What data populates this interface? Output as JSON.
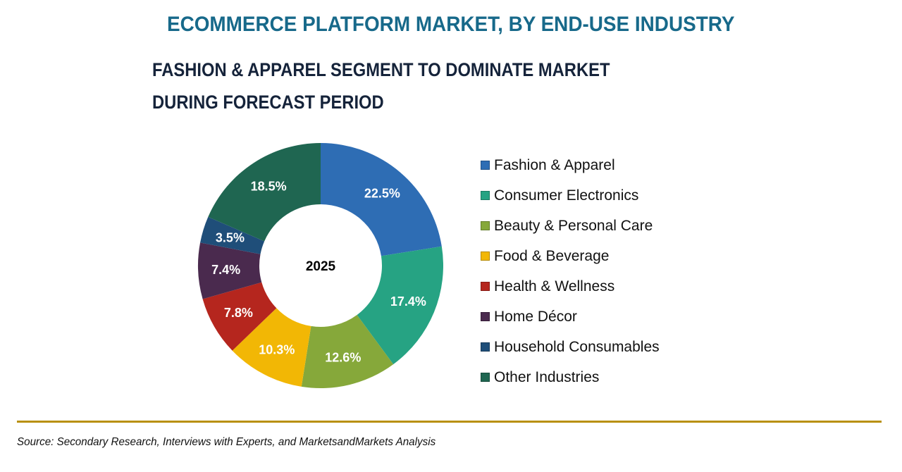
{
  "header": {
    "title": "ECOMMERCE PLATFORM MARKET, BY END-USE INDUSTRY",
    "subtitle_line1": "FASHION & APPAREL SEGMENT TO DOMINATE MARKET",
    "subtitle_line2": "DURING FORECAST PERIOD"
  },
  "footer": {
    "source": "Source: Secondary Research, Interviews with Experts, and MarketsandMarkets Analysis"
  },
  "colors": {
    "title": "#17698a",
    "divider": "#b8900f"
  },
  "chart_data": {
    "type": "pie",
    "variant": "donut",
    "center_label": "2025",
    "unit": "%",
    "title": "ECOMMERCE PLATFORM MARKET, BY END-USE INDUSTRY",
    "subtitle": "FASHION & APPAREL SEGMENT TO DOMINATE MARKET DURING FORECAST PERIOD",
    "start_angle": "12 o'clock",
    "direction": "clockwise",
    "legend_position": "right",
    "categories": [
      "Fashion & Apparel",
      "Consumer Electronics",
      "Beauty & Personal Care",
      "Food & Beverage",
      "Health & Wellness",
      "Home Décor",
      "Household Consumables",
      "Other Industries"
    ],
    "values": [
      22.5,
      17.4,
      12.6,
      10.3,
      7.8,
      7.4,
      3.5,
      18.5
    ],
    "labels": [
      "22.5%",
      "17.4%",
      "12.6%",
      "10.3%",
      "7.8%",
      "7.4%",
      "3.5%",
      "18.5%"
    ],
    "colors": [
      "#2e6db4",
      "#26a383",
      "#86a83a",
      "#f2b705",
      "#b5261e",
      "#4a2a4e",
      "#1f4e79",
      "#1f6651"
    ]
  }
}
